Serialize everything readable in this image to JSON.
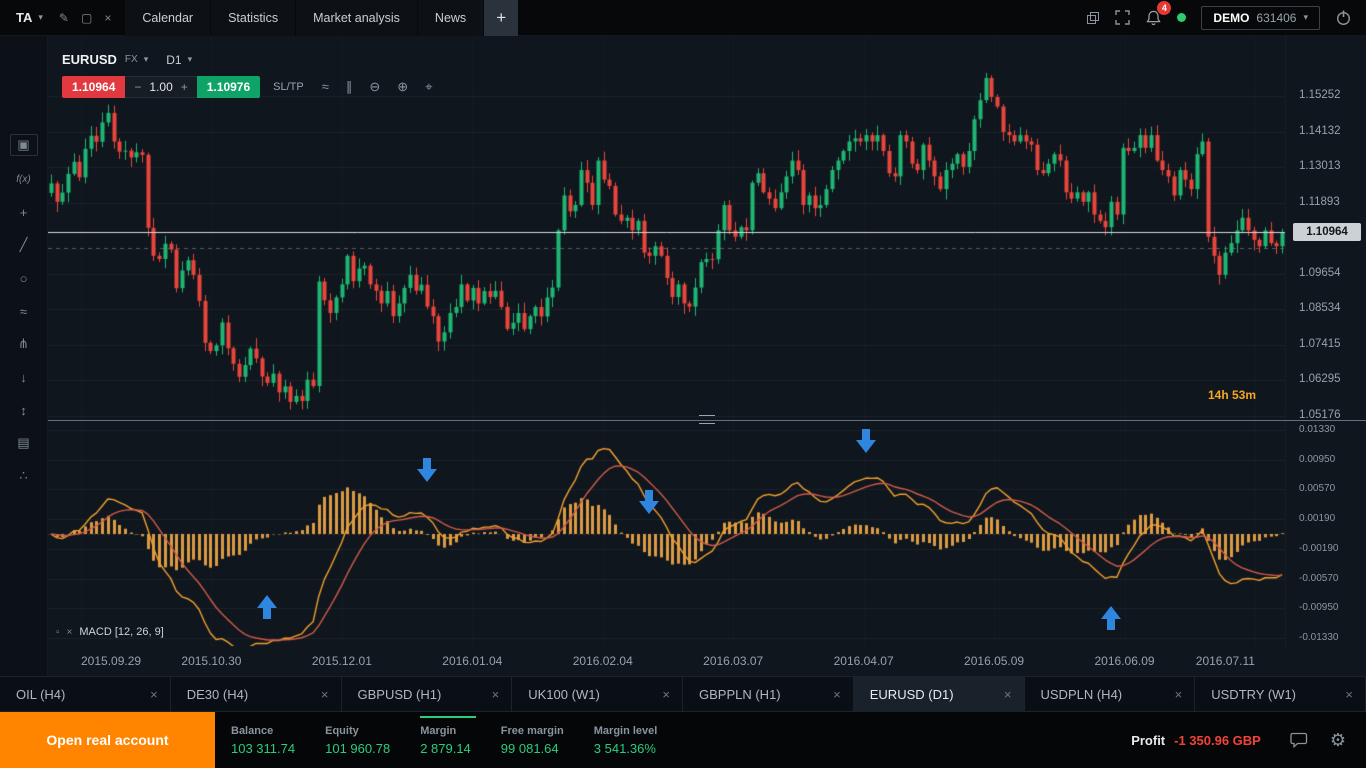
{
  "topbar": {
    "logo": "TA",
    "tabs": [
      "Calendar",
      "Statistics",
      "Market analysis",
      "News"
    ],
    "notification_count": "4",
    "account_type": "DEMO",
    "account_number": "631406"
  },
  "icons": {
    "caret_down": "▾",
    "close": "×",
    "add": "+",
    "minus": "−",
    "plus": "+",
    "gear": "⚙",
    "edit_chart": "✎",
    "detach_window": "▢",
    "collapse": "▫"
  },
  "side_toolbar": [
    {
      "name": "chart-settings-icon",
      "glyph": "▣"
    },
    {
      "name": "indicators-icon",
      "glyph": "f(x)"
    },
    {
      "name": "add-object-icon",
      "glyph": "+"
    },
    {
      "name": "trendline-icon",
      "glyph": "╱"
    },
    {
      "name": "shapes-icon",
      "glyph": "○"
    },
    {
      "name": "waves-icon",
      "glyph": "≈"
    },
    {
      "name": "pitchfork-icon",
      "glyph": "⋔"
    },
    {
      "name": "arrow-tool-icon",
      "glyph": "↓"
    },
    {
      "name": "measure-icon",
      "glyph": "↕"
    },
    {
      "name": "templates-icon",
      "glyph": "▤"
    },
    {
      "name": "share-icon",
      "glyph": "∴"
    }
  ],
  "chart_header": {
    "symbol": "EURUSD",
    "market": "FX",
    "timeframe": "D1"
  },
  "trade_widget": {
    "sell_price": "1.10964",
    "buy_price": "1.10976",
    "volume": "1.00",
    "sl_tp": "SL/TP",
    "tools": [
      {
        "name": "line-chart-icon",
        "glyph": "≈"
      },
      {
        "name": "chart-type-icon",
        "glyph": "∥"
      },
      {
        "name": "zoom-out-icon",
        "glyph": "⊖"
      },
      {
        "name": "zoom-in-icon",
        "glyph": "⊕"
      },
      {
        "name": "crosshair-icon",
        "glyph": "⌖"
      }
    ]
  },
  "chart_data": {
    "type": "candlestick",
    "symbol": "EURUSD",
    "timeframe": "D1",
    "current_price": "1.10964",
    "countdown": "14h 53m",
    "position_line_price": 1.1046,
    "price_axis_ticks": [
      "1.15252",
      "1.14132",
      "1.13013",
      "1.11893",
      "1.09654",
      "1.08534",
      "1.07415",
      "1.06295",
      "1.05176"
    ],
    "x_ticks": [
      "2015.09.29",
      "2015.10.30",
      "2015.12.01",
      "2016.01.04",
      "2016.02.04",
      "2016.03.07",
      "2016.04.07",
      "2016.05.09",
      "2016.06.09",
      "2016.07.11"
    ],
    "closes": [
      1.125,
      1.1192,
      1.1221,
      1.128,
      1.1318,
      1.1269,
      1.1359,
      1.14,
      1.1381,
      1.1442,
      1.1472,
      1.1382,
      1.135,
      1.1353,
      1.1332,
      1.1348,
      1.134,
      1.111,
      1.1022,
      1.1012,
      1.106,
      1.1042,
      1.092,
      1.0976,
      1.1008,
      1.0962,
      1.088,
      1.0748,
      1.0722,
      1.074,
      1.0812,
      1.0731,
      1.0682,
      1.0641,
      1.0678,
      1.073,
      1.0699,
      1.0642,
      1.0622,
      1.0651,
      1.0592,
      1.0611,
      1.0562,
      1.0581,
      1.0565,
      1.0632,
      1.0612,
      1.0941,
      1.0882,
      1.0842,
      1.0891,
      1.0932,
      1.1022,
      1.0942,
      1.0982,
      1.0991,
      1.0932,
      1.0912,
      1.0872,
      1.0911,
      1.0832,
      1.0872,
      1.0921,
      1.0962,
      1.0912,
      1.0931,
      1.0862,
      1.0832,
      1.0752,
      1.0781,
      1.0842,
      1.0861,
      1.0932,
      1.0881,
      1.0921,
      1.0872,
      1.0911,
      1.0892,
      1.0912,
      1.0861,
      1.0792,
      1.0811,
      1.0842,
      1.0791,
      1.0832,
      1.0861,
      1.0831,
      1.0891,
      1.0922,
      1.1102,
      1.1212,
      1.1162,
      1.1182,
      1.1292,
      1.1252,
      1.1182,
      1.1322,
      1.1262,
      1.1242,
      1.1152,
      1.1132,
      1.1142,
      1.1102,
      1.1132,
      1.1032,
      1.1022,
      1.1052,
      1.1022,
      1.0952,
      1.0892,
      1.0932,
      1.0872,
      1.0862,
      1.0922,
      1.1002,
      1.1012,
      1.1011,
      1.1102,
      1.1182,
      1.1102,
      1.1082,
      1.1112,
      1.1102,
      1.1252,
      1.1282,
      1.1222,
      1.1202,
      1.1172,
      1.1222,
      1.1272,
      1.1322,
      1.1292,
      1.1182,
      1.1212,
      1.1172,
      1.1182,
      1.1232,
      1.1292,
      1.1322,
      1.1352,
      1.1382,
      1.1392,
      1.1382,
      1.1402,
      1.1382,
      1.1402,
      1.1352,
      1.1282,
      1.1272,
      1.1402,
      1.1382,
      1.1312,
      1.1292,
      1.1372,
      1.1322,
      1.1272,
      1.1232,
      1.1292,
      1.1312,
      1.1342,
      1.1302,
      1.1352,
      1.1452,
      1.1512,
      1.1582,
      1.1522,
      1.1492,
      1.1412,
      1.1402,
      1.1382,
      1.1402,
      1.1382,
      1.1372,
      1.1292,
      1.1282,
      1.1312,
      1.1342,
      1.1322,
      1.1222,
      1.1202,
      1.1222,
      1.1192,
      1.1222,
      1.1152,
      1.1132,
      1.1112,
      1.1192,
      1.1152,
      1.1362,
      1.1352,
      1.1362,
      1.1402,
      1.1362,
      1.1402,
      1.1322,
      1.1292,
      1.1272,
      1.1212,
      1.1292,
      1.1262,
      1.1232,
      1.1342,
      1.1382,
      1.1082,
      1.1022,
      1.0962,
      1.1032,
      1.1062,
      1.1102,
      1.1142,
      1.1102,
      1.1072,
      1.1052,
      1.1102,
      1.1062,
      1.1052,
      1.10964
    ],
    "macd": {
      "label": "MACD [12, 26, 9]",
      "params": [
        12,
        26,
        9
      ],
      "ticks": [
        "0.01330",
        "0.00950",
        "0.00570",
        "0.00190",
        "-0.00190",
        "-0.00570",
        "-0.00950",
        "-0.01330"
      ]
    },
    "arrows": [
      {
        "index": 38,
        "dir": "up",
        "y_frac": 0.82
      },
      {
        "index": 66,
        "dir": "down",
        "y_frac": 0.22
      },
      {
        "index": 105,
        "dir": "down",
        "y_frac": 0.36
      },
      {
        "index": 143,
        "dir": "down",
        "y_frac": 0.09
      },
      {
        "index": 186,
        "dir": "up",
        "y_frac": 0.87
      }
    ]
  },
  "instrument_tabs": [
    {
      "label": "OIL (H4)"
    },
    {
      "label": "DE30 (H4)"
    },
    {
      "label": "GBPUSD (H1)"
    },
    {
      "label": "UK100 (W1)"
    },
    {
      "label": "GBPPLN (H1)"
    },
    {
      "label": "EURUSD (D1)",
      "active": true
    },
    {
      "label": "USDPLN (H4)"
    },
    {
      "label": "USDTRY (W1)"
    }
  ],
  "statusbar": {
    "cta": "Open real account",
    "items": [
      {
        "label": "Balance",
        "value": "103 311.74"
      },
      {
        "label": "Equity",
        "value": "101 960.78"
      },
      {
        "label": "Margin",
        "value": "2 879.14",
        "marker": true
      },
      {
        "label": "Free margin",
        "value": "99 081.64"
      },
      {
        "label": "Margin level",
        "value": "3 541.36%"
      }
    ],
    "profit_label": "Profit",
    "profit_value": "-1 350.96 GBP"
  },
  "colors": {
    "candle_up": "#1fb573",
    "candle_down": "#e8453c",
    "histogram": "#dc9a43",
    "macd_line": "#f2a12f",
    "signal_line": "#cf5b49",
    "arrow": "#2e86de",
    "accent_orange": "#ff8400",
    "value_green": "#2bcd7c",
    "profit_red": "#f44336",
    "current_price_line": "#d6dade",
    "grid": "rgba(255,255,255,0.05)"
  }
}
